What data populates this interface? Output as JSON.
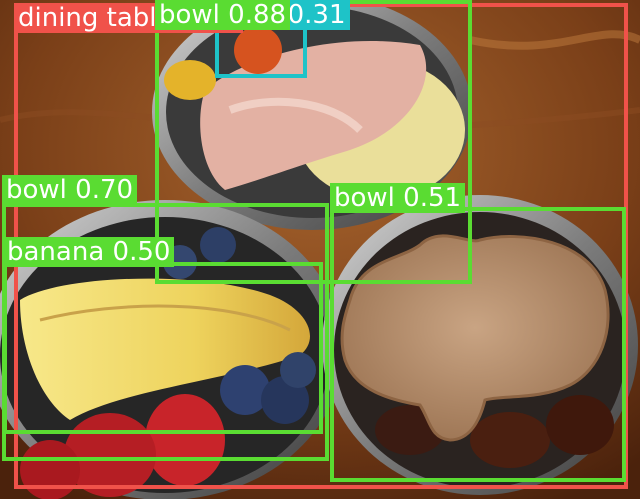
{
  "detections": [
    {
      "label": "dining table 0.26",
      "color": "#f0524a"
    },
    {
      "label": "cake 0.31",
      "color": "#1ec3c8"
    },
    {
      "label": "bowl 0.88",
      "color": "#5adc32"
    },
    {
      "label": "bowl 0.70",
      "color": "#5adc32"
    },
    {
      "label": "bowl 0.51",
      "color": "#5adc32"
    },
    {
      "label": "banana 0.50",
      "color": "#5adc32"
    }
  ]
}
